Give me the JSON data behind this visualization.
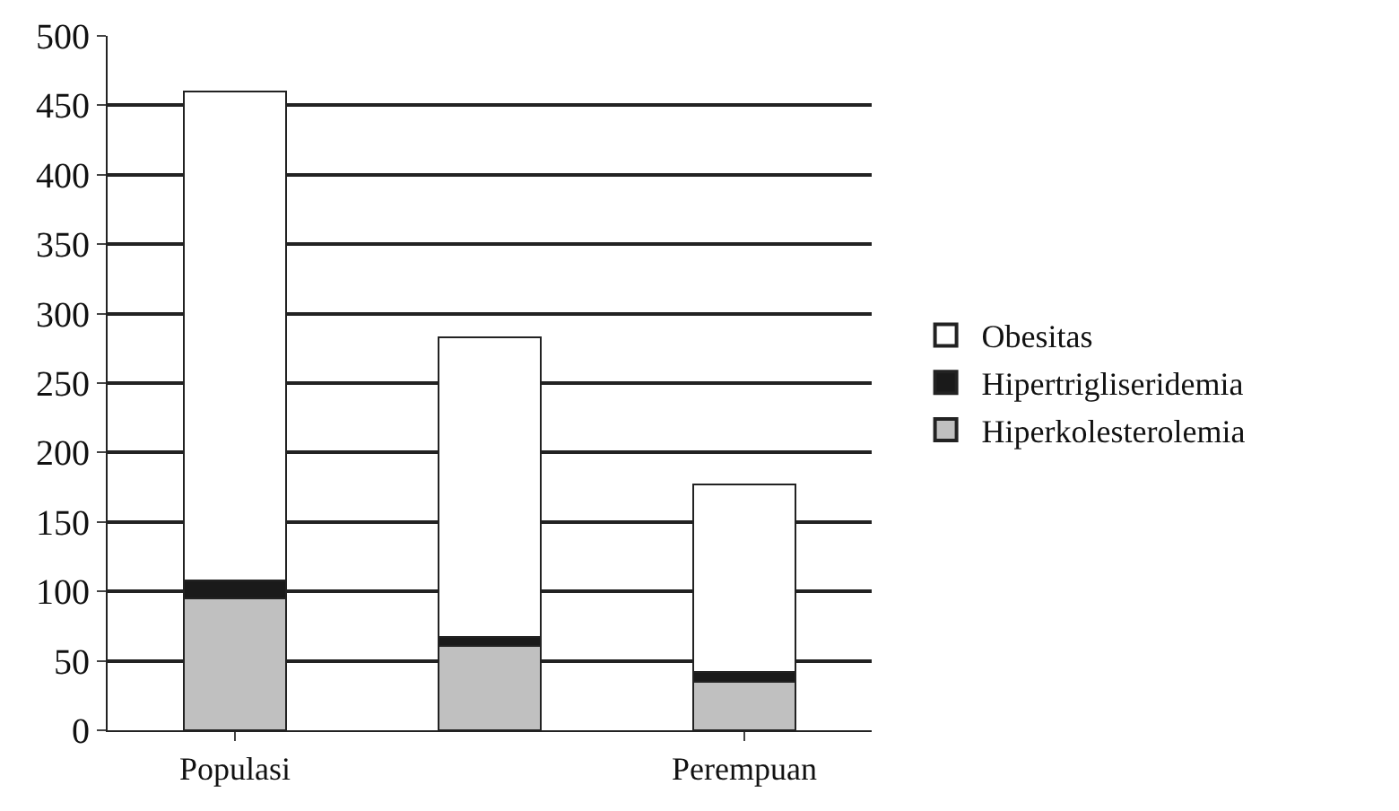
{
  "chart_data": {
    "type": "bar",
    "stacked": true,
    "categories": [
      "Populasi",
      null,
      "Perempuan"
    ],
    "series": [
      {
        "name": "Hiperkolesterolemia",
        "color": "#c0c0c0",
        "values": [
          95,
          61,
          35
        ]
      },
      {
        "name": "Hipertrigliseridemia",
        "color": "#1a1a1a",
        "values": [
          13,
          6,
          7
        ]
      },
      {
        "name": "Obesitas",
        "color": "#ffffff",
        "values": [
          352,
          216,
          135
        ]
      }
    ],
    "ylim": [
      0,
      500
    ],
    "yticks": [
      0,
      50,
      100,
      150,
      200,
      250,
      300,
      350,
      400,
      450,
      500
    ],
    "grid": "y",
    "legend": "right"
  }
}
